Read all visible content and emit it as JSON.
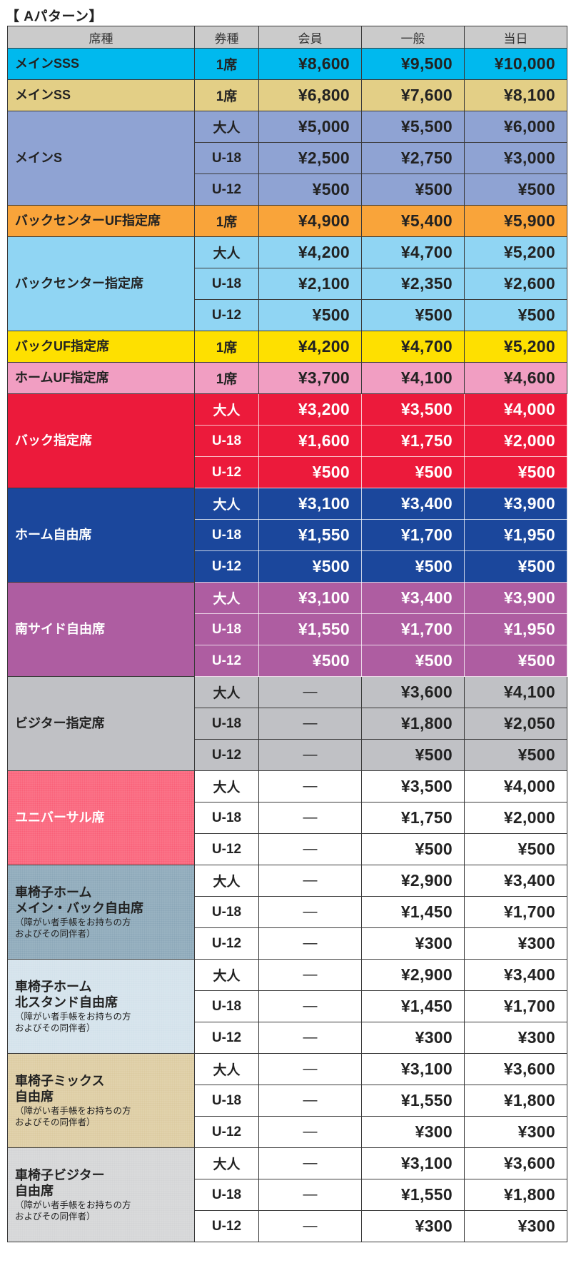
{
  "title": "【 Aパターン】",
  "headers": [
    "席種",
    "券種",
    "会員",
    "一般",
    "当日"
  ],
  "groups": [
    {
      "name": "メインSSS",
      "bg": "#00b9ee",
      "color": "#222222",
      "rows": [
        {
          "type": "1席",
          "member": "¥8,600",
          "general": "¥9,500",
          "sameday": "¥10,000"
        }
      ]
    },
    {
      "name": "メインSS",
      "bg": "#e3cf86",
      "color": "#222222",
      "rows": [
        {
          "type": "1席",
          "member": "¥6,800",
          "general": "¥7,600",
          "sameday": "¥8,100"
        }
      ]
    },
    {
      "name": "メインS",
      "bg": "#8fa3d3",
      "color": "#222222",
      "rows": [
        {
          "type": "大人",
          "member": "¥5,000",
          "general": "¥5,500",
          "sameday": "¥6,000"
        },
        {
          "type": "U-18",
          "member": "¥2,500",
          "general": "¥2,750",
          "sameday": "¥3,000"
        },
        {
          "type": "U-12",
          "member": "¥500",
          "general": "¥500",
          "sameday": "¥500"
        }
      ]
    },
    {
      "name": "バックセンターUF指定席",
      "bg": "#f9a43a",
      "color": "#222222",
      "rows": [
        {
          "type": "1席",
          "member": "¥4,900",
          "general": "¥5,400",
          "sameday": "¥5,900"
        }
      ]
    },
    {
      "name": "バックセンター指定席",
      "bg": "#90d5f3",
      "color": "#222222",
      "rows": [
        {
          "type": "大人",
          "member": "¥4,200",
          "general": "¥4,700",
          "sameday": "¥5,200"
        },
        {
          "type": "U-18",
          "member": "¥2,100",
          "general": "¥2,350",
          "sameday": "¥2,600"
        },
        {
          "type": "U-12",
          "member": "¥500",
          "general": "¥500",
          "sameday": "¥500"
        }
      ]
    },
    {
      "name": "バックUF指定席",
      "bg": "#fee000",
      "color": "#222222",
      "rows": [
        {
          "type": "1席",
          "member": "¥4,200",
          "general": "¥4,700",
          "sameday": "¥5,200"
        }
      ]
    },
    {
      "name": "ホームUF指定席",
      "bg": "#f19ec2",
      "color": "#222222",
      "rows": [
        {
          "type": "1席",
          "member": "¥3,700",
          "general": "¥4,100",
          "sameday": "¥4,600"
        }
      ]
    },
    {
      "name": "バック指定席",
      "bg": "#ec1a3b",
      "color": "#ffffff",
      "rows": [
        {
          "type": "大人",
          "member": "¥3,200",
          "general": "¥3,500",
          "sameday": "¥4,000"
        },
        {
          "type": "U-18",
          "member": "¥1,600",
          "general": "¥1,750",
          "sameday": "¥2,000"
        },
        {
          "type": "U-12",
          "member": "¥500",
          "general": "¥500",
          "sameday": "¥500"
        }
      ]
    },
    {
      "name": "ホーム自由席",
      "bg": "#1b479c",
      "color": "#ffffff",
      "rows": [
        {
          "type": "大人",
          "member": "¥3,100",
          "general": "¥3,400",
          "sameday": "¥3,900"
        },
        {
          "type": "U-18",
          "member": "¥1,550",
          "general": "¥1,700",
          "sameday": "¥1,950"
        },
        {
          "type": "U-12",
          "member": "¥500",
          "general": "¥500",
          "sameday": "¥500"
        }
      ]
    },
    {
      "name": "南サイド自由席",
      "bg": "#ae5da1",
      "color": "#ffffff",
      "rows": [
        {
          "type": "大人",
          "member": "¥3,100",
          "general": "¥3,400",
          "sameday": "¥3,900"
        },
        {
          "type": "U-18",
          "member": "¥1,550",
          "general": "¥1,700",
          "sameday": "¥1,950"
        },
        {
          "type": "U-12",
          "member": "¥500",
          "general": "¥500",
          "sameday": "¥500"
        }
      ]
    },
    {
      "name": "ビジター指定席",
      "bg": "#c0c1c5",
      "color": "#222222",
      "rows": [
        {
          "type": "大人",
          "member": "—",
          "general": "¥3,600",
          "sameday": "¥4,100"
        },
        {
          "type": "U-18",
          "member": "—",
          "general": "¥1,800",
          "sameday": "¥2,050"
        },
        {
          "type": "U-12",
          "member": "—",
          "general": "¥500",
          "sameday": "¥500"
        }
      ]
    },
    {
      "name": "ユニバーサル席",
      "bg": "#fa5f78",
      "color": "#ffffff",
      "cells_bg": "#ffffff",
      "cells_color": "#222222",
      "rows": [
        {
          "type": "大人",
          "member": "—",
          "general": "¥3,500",
          "sameday": "¥4,000"
        },
        {
          "type": "U-18",
          "member": "—",
          "general": "¥1,750",
          "sameday": "¥2,000"
        },
        {
          "type": "U-12",
          "member": "—",
          "general": "¥500",
          "sameday": "¥500"
        }
      ]
    },
    {
      "name": "車椅子ホーム\nメイン・バック自由席",
      "note": "（障がい者手帳をお持ちの方\nおよびその同伴者）",
      "bg": "#8aa7b8",
      "color": "#222222",
      "cells_bg": "#ffffff",
      "cells_color": "#222222",
      "rows": [
        {
          "type": "大人",
          "member": "—",
          "general": "¥2,900",
          "sameday": "¥3,400"
        },
        {
          "type": "U-18",
          "member": "—",
          "general": "¥1,450",
          "sameday": "¥1,700"
        },
        {
          "type": "U-12",
          "member": "—",
          "general": "¥300",
          "sameday": "¥300"
        }
      ]
    },
    {
      "name": "車椅子ホーム\n北スタンド自由席",
      "note": "（障がい者手帳をお持ちの方\nおよびその同伴者）",
      "bg": "#d2e1ea",
      "color": "#222222",
      "cells_bg": "#ffffff",
      "cells_color": "#222222",
      "rows": [
        {
          "type": "大人",
          "member": "—",
          "general": "¥2,900",
          "sameday": "¥3,400"
        },
        {
          "type": "U-18",
          "member": "—",
          "general": "¥1,450",
          "sameday": "¥1,700"
        },
        {
          "type": "U-12",
          "member": "—",
          "general": "¥300",
          "sameday": "¥300"
        }
      ]
    },
    {
      "name": "車椅子ミックス\n自由席",
      "note": "（障がい者手帳をお持ちの方\nおよびその同伴者）",
      "bg": "#dccba0",
      "color": "#222222",
      "cells_bg": "#ffffff",
      "cells_color": "#222222",
      "rows": [
        {
          "type": "大人",
          "member": "—",
          "general": "¥3,100",
          "sameday": "¥3,600"
        },
        {
          "type": "U-18",
          "member": "—",
          "general": "¥1,550",
          "sameday": "¥1,800"
        },
        {
          "type": "U-12",
          "member": "—",
          "general": "¥300",
          "sameday": "¥300"
        }
      ]
    },
    {
      "name": "車椅子ビジター\n自由席",
      "note": "（障がい者手帳をお持ちの方\nおよびその同伴者）",
      "bg": "#d3d4d6",
      "color": "#222222",
      "cells_bg": "#ffffff",
      "cells_color": "#222222",
      "rows": [
        {
          "type": "大人",
          "member": "—",
          "general": "¥3,100",
          "sameday": "¥3,600"
        },
        {
          "type": "U-18",
          "member": "—",
          "general": "¥1,550",
          "sameday": "¥1,800"
        },
        {
          "type": "U-12",
          "member": "—",
          "general": "¥300",
          "sameday": "¥300"
        }
      ]
    }
  ]
}
